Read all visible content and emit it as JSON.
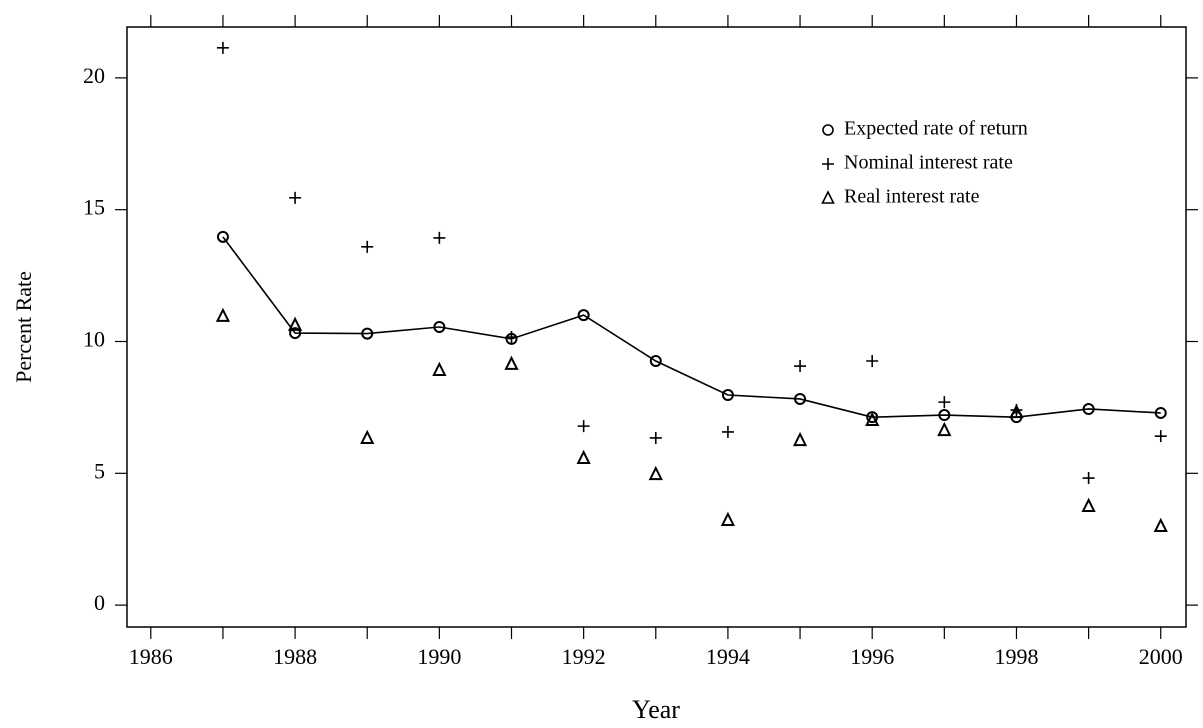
{
  "chart_data": {
    "type": "scatter",
    "x_label": "Year",
    "y_label": "Percent Rate",
    "x": [
      1987,
      1988,
      1989,
      1990,
      1991,
      1992,
      1993,
      1994,
      1995,
      1996,
      1997,
      1998,
      1999,
      2000
    ],
    "series": [
      {
        "name": "Expected rate of return",
        "color": "#000000",
        "marker": "circle",
        "line": true,
        "values": [
          13.97,
          10.32,
          10.3,
          10.55,
          10.1,
          11.0,
          9.26,
          7.97,
          7.82,
          7.13,
          7.21,
          7.13,
          7.44,
          7.29
        ]
      },
      {
        "name": "Nominal interest rate",
        "color": "#000000",
        "marker": "plus",
        "line": false,
        "values": [
          21.14,
          15.45,
          13.59,
          13.93,
          10.17,
          6.79,
          6.34,
          6.57,
          9.07,
          9.26,
          7.7,
          7.4,
          4.82,
          6.41
        ]
      },
      {
        "name": "Real interest rate",
        "color": "#000000",
        "marker": "triangle",
        "line": false,
        "values": [
          10.97,
          10.63,
          6.34,
          8.92,
          9.15,
          5.58,
          4.97,
          3.23,
          6.26,
          7.02,
          6.64,
          7.32,
          3.76,
          3.0
        ]
      }
    ],
    "xlim": [
      1985.67,
      2000.35
    ],
    "ylim": [
      -0.83,
      21.93
    ],
    "xticks": [
      1986,
      1988,
      1990,
      1992,
      1994,
      1996,
      1998,
      2000
    ],
    "xminorticks": [
      1987,
      1989,
      1991,
      1993,
      1995,
      1997,
      1999
    ],
    "yticks": [
      0,
      5,
      10,
      15,
      20
    ],
    "legend": "upper right",
    "grid": false
  }
}
